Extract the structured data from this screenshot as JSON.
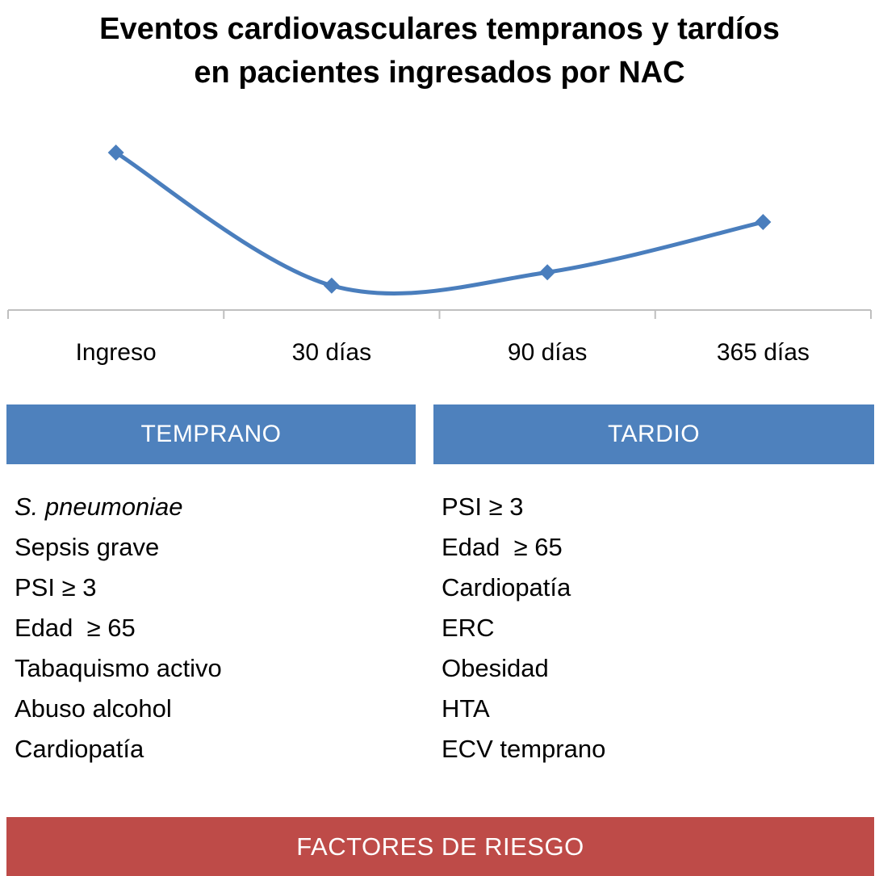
{
  "title": {
    "line1": "Eventos cardiovasculares tempranos y tardíos",
    "line2": "en pacientes ingresados por NAC"
  },
  "chart_data": {
    "type": "line",
    "x_labels": [
      "Ingreso",
      "30 días",
      "90 días",
      "365 días"
    ],
    "values": [
      1.0,
      0.1,
      0.19,
      0.53
    ],
    "title": "Eventos cardiovasculares tempranos y tardíos en pacientes ingresados por NAC",
    "xlabel": "",
    "ylabel": "",
    "y_axis_shown": false,
    "grid": false,
    "legend": "none",
    "marker": "diamond",
    "series_color": "#4A7EBD",
    "axis_color": "#BFBFBF"
  },
  "early": {
    "header": "TEMPRANO",
    "items": [
      "S. pneumoniae",
      "Sepsis grave",
      "PSI ≥ 3",
      "Edad  ≥ 65",
      "Tabaquismo activo",
      "Abuso alcohol",
      "Cardiopatía"
    ]
  },
  "late": {
    "header": "TARDIO",
    "items": [
      "PSI ≥ 3",
      "Edad  ≥ 65",
      "Cardiopatía",
      "ERC",
      "Obesidad",
      "HTA",
      "ECV temprano"
    ]
  },
  "footer": {
    "label": "FACTORES DE RIESGO"
  },
  "colors": {
    "header_blue": "#4E81BD",
    "footer_red": "#BE4B48",
    "line_blue": "#4A7EBD",
    "axis_gray": "#BFBFBF"
  }
}
